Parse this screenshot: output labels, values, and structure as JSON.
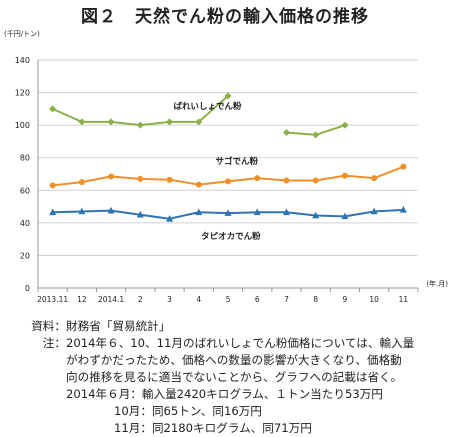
{
  "title": "図２　天然でん粉の輸入価格の推移",
  "chart_data": {
    "type": "line",
    "unit_label": "(千円/トン)",
    "x_unit_label": "(年.月)",
    "categories": [
      "2013.11",
      "12",
      "2014.1",
      "2",
      "3",
      "4",
      "5",
      "6",
      "7",
      "8",
      "9",
      "10",
      "11"
    ],
    "ylim": [
      0,
      140
    ],
    "yticks": [
      0,
      20,
      40,
      60,
      80,
      100,
      120,
      140
    ],
    "grid": true,
    "series": [
      {
        "name": "ばれいしょでん粉",
        "color": "#8ab04a",
        "marker": "diamond",
        "values": [
          110,
          102,
          102,
          100,
          102,
          102,
          118,
          null,
          95.5,
          94,
          100,
          null,
          null
        ]
      },
      {
        "name": "サゴでん粉",
        "color": "#f0902a",
        "marker": "circle",
        "values": [
          63,
          65,
          68.5,
          67,
          66.5,
          63.5,
          65.5,
          67.5,
          66,
          66,
          69,
          67.5,
          74.5
        ]
      },
      {
        "name": "タピオカでん粉",
        "color": "#2e74b5",
        "marker": "triangle",
        "values": [
          46.5,
          47,
          47.5,
          45,
          42.5,
          46.5,
          46,
          46.5,
          46.5,
          44.5,
          44,
          47,
          48
        ]
      }
    ]
  },
  "notes": {
    "source_label": "資料：",
    "source_text": "財務省「貿易統計」",
    "note_label": "注：",
    "note_line1": "2014年６、10、11月のばれいしょでん粉価格については、輸入量",
    "note_line2": "がわずかだったため、価格への数量の影響が大きくなり、価格動",
    "note_line3": "向の推移を見るに適当でないことから、グラフへの記載は省く。",
    "detail_line1": "2014年６月：輸入量2420キログラム、１トン当たり53万円",
    "detail_line2": "10月：同65トン、同16万円",
    "detail_line3": "11月：同2180キログラム、同71万円"
  }
}
